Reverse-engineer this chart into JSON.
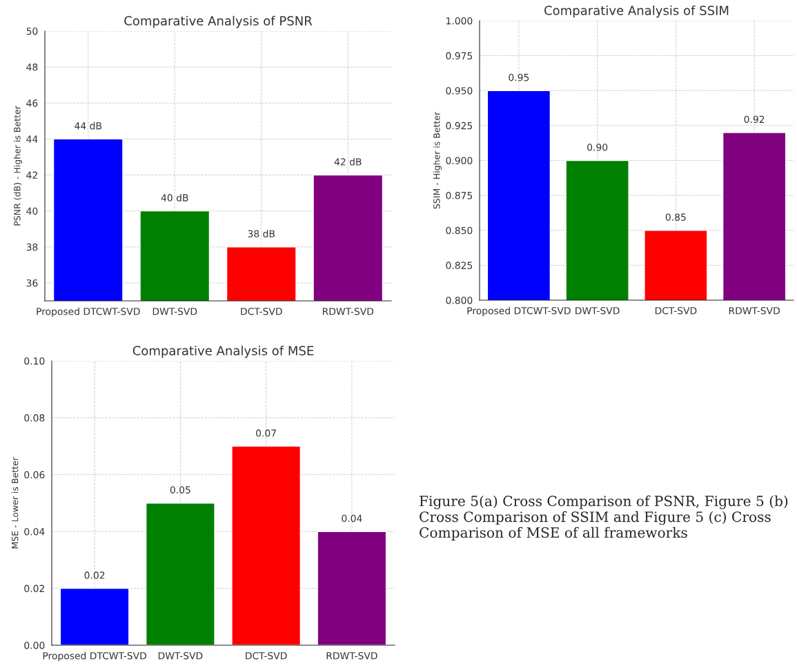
{
  "chart_data": [
    {
      "type": "bar",
      "title": "Comparative Analysis of PSNR",
      "ylabel": "PSNR (dB) - Higher is Better",
      "categories": [
        "Proposed DTCWT-SVD",
        "DWT-SVD",
        "DCT-SVD",
        "RDWT-SVD"
      ],
      "values": [
        44,
        40,
        38,
        42
      ],
      "colors": [
        "#0000ff",
        "#008000",
        "#ff0000",
        "#800080"
      ],
      "value_labels": [
        "44 dB",
        "40 dB",
        "38 dB",
        "42 dB"
      ],
      "ylim": [
        35,
        50
      ],
      "yticks": [
        36,
        38,
        40,
        42,
        44,
        46,
        48,
        50
      ],
      "grid": true
    },
    {
      "type": "bar",
      "title": "Comparative Analysis of SSIM",
      "ylabel": "SSIM - Higher is Better",
      "categories": [
        "Proposed DTCWT-SVD",
        "DWT-SVD",
        "DCT-SVD",
        "RDWT-SVD"
      ],
      "values": [
        0.95,
        0.9,
        0.85,
        0.92
      ],
      "colors": [
        "#0000ff",
        "#008000",
        "#ff0000",
        "#800080"
      ],
      "value_labels": [
        "0.95",
        "0.90",
        "0.85",
        "0.92"
      ],
      "ylim": [
        0.8,
        1.0
      ],
      "yticks": [
        {
          "value": 0.8,
          "label": "0.800"
        },
        {
          "value": 0.825,
          "label": "0.825"
        },
        {
          "value": 0.85,
          "label": "0.850"
        },
        {
          "value": 0.875,
          "label": "0.875"
        },
        {
          "value": 0.9,
          "label": "0.900"
        },
        {
          "value": 0.925,
          "label": "0.925"
        },
        {
          "value": 0.95,
          "label": "0.950"
        },
        {
          "value": 0.975,
          "label": "0.975"
        },
        {
          "value": 1.0,
          "label": "1.000"
        }
      ],
      "grid": true
    },
    {
      "type": "bar",
      "title": "Comparative Analysis of MSE",
      "ylabel": "MSE - Lower is Better",
      "categories": [
        "Proposed DTCWT-SVD",
        "DWT-SVD",
        "DCT-SVD",
        "RDWT-SVD"
      ],
      "values": [
        0.02,
        0.05,
        0.07,
        0.04
      ],
      "colors": [
        "#0000ff",
        "#008000",
        "#ff0000",
        "#800080"
      ],
      "value_labels": [
        "0.02",
        "0.05",
        "0.07",
        "0.04"
      ],
      "ylim": [
        0,
        0.1
      ],
      "yticks": [
        {
          "value": 0,
          "label": "0.00"
        },
        {
          "value": 0.02,
          "label": "0.02"
        },
        {
          "value": 0.04,
          "label": "0.04"
        },
        {
          "value": 0.06,
          "label": "0.06"
        },
        {
          "value": 0.08,
          "label": "0.08"
        },
        {
          "value": 0.1,
          "label": "0.10"
        }
      ],
      "grid": true,
      "annotations": [
        "Figure 5(a) Cross Comparison of PSNR, Figure 5 (b) Cross Comparison of SSIM and Figure 5 (c) Cross Comparison of MSE of all frameworks"
      ]
    }
  ]
}
